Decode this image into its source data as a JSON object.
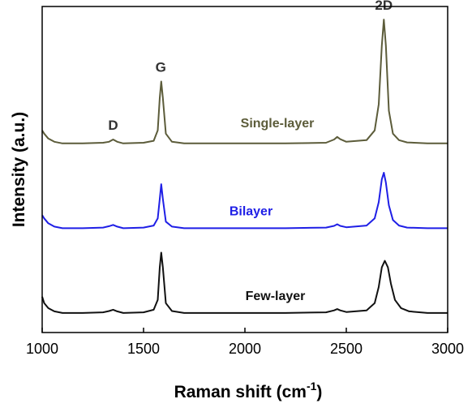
{
  "chart_data": {
    "type": "line",
    "title": "",
    "xlabel": "Raman shift (cm",
    "xlabel_sup": "-1",
    "xlabel_close": ")",
    "ylabel": "Intensity (a.u.)",
    "xlim": [
      1000,
      3000
    ],
    "x_ticks": [
      "1000",
      "1500",
      "2000",
      "2500",
      "3000"
    ],
    "x_tick_values": [
      1000,
      1500,
      2000,
      2500,
      3000
    ],
    "y_ticks_labeled": false,
    "grid": false,
    "peak_labels": [
      {
        "text": "D",
        "x": 1350
      },
      {
        "text": "G",
        "x": 1585
      },
      {
        "text": "2D",
        "x": 2685
      }
    ],
    "series": [
      {
        "name": "Single-layer",
        "color": "#5c5c3a",
        "label_color": "#5c5c3a",
        "baseline": 0.58,
        "x": [
          1000,
          1010,
          1030,
          1060,
          1100,
          1200,
          1300,
          1330,
          1350,
          1370,
          1400,
          1500,
          1550,
          1570,
          1580,
          1587,
          1595,
          1610,
          1640,
          1700,
          1800,
          2000,
          2200,
          2400,
          2440,
          2455,
          2470,
          2500,
          2600,
          2640,
          2660,
          2675,
          2685,
          2695,
          2710,
          2730,
          2760,
          2800,
          2900,
          3000
        ],
        "y": [
          0.62,
          0.61,
          0.595,
          0.585,
          0.58,
          0.58,
          0.582,
          0.585,
          0.592,
          0.585,
          0.58,
          0.582,
          0.588,
          0.62,
          0.72,
          0.77,
          0.72,
          0.61,
          0.585,
          0.58,
          0.58,
          0.58,
          0.58,
          0.582,
          0.592,
          0.6,
          0.593,
          0.585,
          0.59,
          0.62,
          0.7,
          0.88,
          0.96,
          0.88,
          0.68,
          0.61,
          0.59,
          0.583,
          0.58,
          0.58
        ]
      },
      {
        "name": "Bilayer",
        "color": "#1f1fe6",
        "label_color": "#1f1fe6",
        "baseline": 0.32,
        "x": [
          1000,
          1010,
          1030,
          1060,
          1100,
          1200,
          1300,
          1330,
          1350,
          1370,
          1400,
          1500,
          1550,
          1570,
          1580,
          1587,
          1595,
          1610,
          1640,
          1700,
          1800,
          2000,
          2200,
          2400,
          2440,
          2455,
          2470,
          2500,
          2600,
          2640,
          2660,
          2675,
          2685,
          2695,
          2710,
          2730,
          2760,
          2800,
          2900,
          3000
        ],
        "y": [
          0.36,
          0.35,
          0.335,
          0.325,
          0.32,
          0.32,
          0.322,
          0.326,
          0.33,
          0.325,
          0.32,
          0.322,
          0.328,
          0.35,
          0.41,
          0.455,
          0.41,
          0.34,
          0.325,
          0.32,
          0.32,
          0.32,
          0.32,
          0.322,
          0.327,
          0.332,
          0.327,
          0.323,
          0.328,
          0.35,
          0.4,
          0.47,
          0.49,
          0.46,
          0.39,
          0.345,
          0.328,
          0.322,
          0.32,
          0.32
        ]
      },
      {
        "name": "Few-layer",
        "color": "#111111",
        "label_color": "#111111",
        "baseline": 0.06,
        "x": [
          1000,
          1010,
          1030,
          1060,
          1100,
          1200,
          1300,
          1330,
          1350,
          1370,
          1400,
          1500,
          1550,
          1570,
          1580,
          1587,
          1595,
          1610,
          1640,
          1700,
          1800,
          2000,
          2200,
          2400,
          2440,
          2455,
          2470,
          2500,
          2600,
          2640,
          2660,
          2675,
          2690,
          2705,
          2720,
          2740,
          2770,
          2810,
          2900,
          3000
        ],
        "y": [
          0.11,
          0.09,
          0.075,
          0.065,
          0.06,
          0.06,
          0.062,
          0.066,
          0.07,
          0.065,
          0.06,
          0.062,
          0.07,
          0.1,
          0.2,
          0.245,
          0.2,
          0.09,
          0.066,
          0.06,
          0.06,
          0.06,
          0.06,
          0.062,
          0.068,
          0.072,
          0.068,
          0.063,
          0.068,
          0.09,
          0.14,
          0.2,
          0.22,
          0.2,
          0.15,
          0.1,
          0.075,
          0.065,
          0.06,
          0.06
        ]
      }
    ],
    "series_labels": [
      {
        "text": "Single-layer",
        "x": 2160,
        "y": 0.62
      },
      {
        "text": "Bilayer",
        "x": 2030,
        "y": 0.35
      },
      {
        "text": "Few-layer",
        "x": 2150,
        "y": 0.09
      }
    ]
  }
}
